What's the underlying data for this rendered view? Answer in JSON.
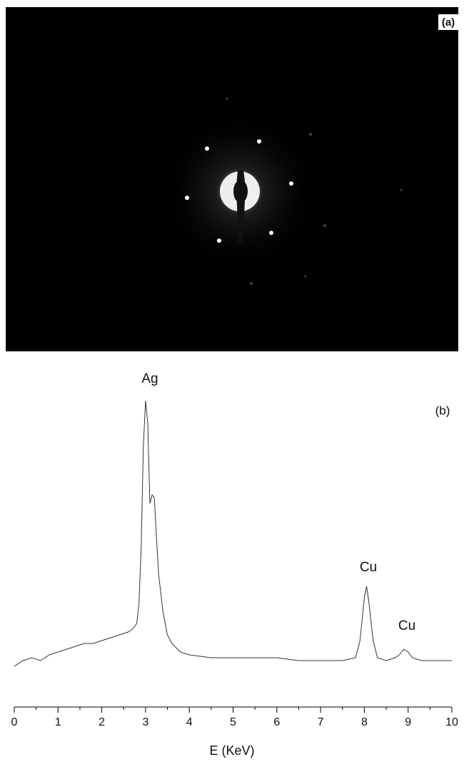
{
  "panel_a": {
    "label": "(a)"
  },
  "chart_data": {
    "type": "line",
    "panel_label": "(b)",
    "x_label": "E (KeV)",
    "xlim": [
      0,
      10
    ],
    "xticks": [
      0,
      1,
      2,
      3,
      4,
      5,
      6,
      7,
      8,
      9,
      10
    ],
    "xminorticks": [
      0.5,
      1.5,
      2.5,
      3.5,
      4.5,
      5.5,
      6.5,
      7.5,
      8.5,
      9.5
    ],
    "ylim": [
      0,
      100
    ],
    "annotations": [
      "Ag",
      "Cu",
      "Cu"
    ],
    "series": [
      {
        "color": "#333333",
        "x": [
          0,
          0.2,
          0.4,
          0.6,
          0.8,
          1.0,
          1.2,
          1.4,
          1.6,
          1.8,
          2.0,
          2.2,
          2.4,
          2.6,
          2.7,
          2.8,
          2.85,
          2.9,
          2.95,
          3.0,
          3.05,
          3.1,
          3.15,
          3.2,
          3.25,
          3.3,
          3.4,
          3.5,
          3.6,
          3.8,
          4.0,
          4.5,
          5.0,
          5.5,
          6.0,
          6.5,
          7.0,
          7.5,
          7.8,
          7.9,
          8.0,
          8.05,
          8.1,
          8.2,
          8.3,
          8.5,
          8.7,
          8.8,
          8.9,
          9.0,
          9.1,
          9.3,
          9.6,
          10.0
        ],
        "values": [
          3,
          5,
          6,
          5,
          7,
          8,
          9,
          10,
          11,
          11,
          12,
          13,
          14,
          15,
          16,
          18,
          25,
          45,
          80,
          96,
          88,
          60,
          63,
          62,
          48,
          35,
          22,
          14,
          11,
          8,
          7,
          6,
          6,
          6,
          6,
          5,
          5,
          5,
          6,
          12,
          27,
          31,
          26,
          12,
          6,
          5,
          6,
          7,
          9,
          8,
          6,
          5,
          5,
          5
        ]
      }
    ]
  }
}
